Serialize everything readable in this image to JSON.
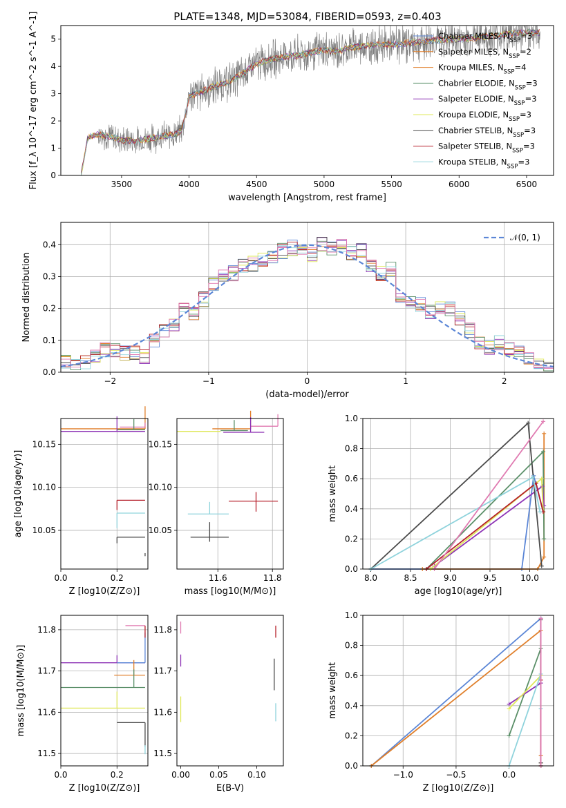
{
  "figure": {
    "title": "PLATE=1348, MJD=53084, FIBERID=0593, z=0.403"
  },
  "colors": {
    "blue": "#5b86d6",
    "orange": "#e07f2a",
    "green": "#5a8f68",
    "purple": "#8d33b5",
    "yellow": "#dfe85a",
    "dark": "#4a4a4a",
    "red": "#b51f2a",
    "cyan": "#8fd3dc",
    "pink": "#e07ab1",
    "gray": "#808080"
  },
  "chart_data": [
    {
      "id": "spectrum",
      "type": "line",
      "xlabel": "wavelength [Angstrom, rest frame]",
      "ylabel": "Flux [f_λ 10^-17 erg cm^-2 s^-1 A^-1]",
      "xlim": [
        3050,
        6700
      ],
      "ylim": [
        0,
        5.5
      ],
      "xticks": [
        3500,
        4000,
        4500,
        5000,
        5500,
        6000,
        6500
      ],
      "yticks": [
        0,
        1,
        2,
        3,
        4,
        5
      ],
      "grid": false,
      "legend_position": "right",
      "series": [
        {
          "name": "Chabrier MILES, N_SSP=3",
          "color": "#5b86d6"
        },
        {
          "name": "Salpeter MILES, N_SSP=2",
          "color": "#e07f2a"
        },
        {
          "name": "Kroupa MILES, N_SSP=4",
          "color": "#e07f2a"
        },
        {
          "name": "Chabrier ELODIE, N_SSP=3",
          "color": "#5a8f68"
        },
        {
          "name": "Salpeter ELODIE, N_SSP=3",
          "color": "#8d33b5"
        },
        {
          "name": "Kroupa ELODIE, N_SSP=3",
          "color": "#dfe85a"
        },
        {
          "name": "Chabrier STELIB, N_SSP=3",
          "color": "#4a4a4a"
        },
        {
          "name": "Salpeter STELIB, N_SSP=3",
          "color": "#b51f2a"
        },
        {
          "name": "Kroupa STELIB, N_SSP=3",
          "color": "#8fd3dc"
        }
      ],
      "data_profile": {
        "x": [
          3200,
          3250,
          3300,
          3400,
          3500,
          3600,
          3700,
          3800,
          3900,
          3950,
          4000,
          4100,
          4200,
          4300,
          4400,
          4500,
          4600,
          4700,
          4800,
          4900,
          5000,
          5100,
          5200,
          5300,
          5400,
          5500,
          5600,
          5700,
          5800,
          5900,
          6000,
          6100,
          6200,
          6300,
          6400,
          6500
        ],
        "y": [
          0.0,
          1.4,
          1.5,
          1.45,
          1.3,
          1.25,
          1.35,
          1.45,
          1.5,
          1.7,
          2.9,
          3.1,
          3.3,
          3.45,
          3.75,
          4.1,
          4.25,
          4.35,
          4.4,
          4.5,
          4.6,
          4.55,
          4.7,
          4.75,
          4.8,
          4.8,
          4.85,
          4.9,
          4.95,
          5.0,
          5.0,
          5.05,
          5.1,
          5.15,
          5.2,
          5.25
        ]
      }
    },
    {
      "id": "residuals",
      "type": "line",
      "xlabel": "(data-model)/error",
      "ylabel": "Normed distribution",
      "xlim": [
        -2.5,
        2.5
      ],
      "ylim": [
        0,
        0.47
      ],
      "xticks": [
        -2,
        -1,
        0,
        1,
        2
      ],
      "yticks": [
        0.0,
        0.1,
        0.2,
        0.3,
        0.4
      ],
      "grid": true,
      "legend_position": "top-right",
      "series": [
        {
          "name": "𝒩(0, 1)",
          "color": "#5b86d6",
          "style": "dashed",
          "mean": 0,
          "sigma": 1
        }
      ],
      "histogram_centers": [
        -2.45,
        -2.35,
        -2.25,
        -2.15,
        -2.05,
        -1.95,
        -1.85,
        -1.75,
        -1.65,
        -1.55,
        -1.45,
        -1.35,
        -1.25,
        -1.15,
        -1.05,
        -0.95,
        -0.85,
        -0.75,
        -0.65,
        -0.55,
        -0.45,
        -0.35,
        -0.25,
        -0.15,
        -0.05,
        0.05,
        0.15,
        0.25,
        0.35,
        0.45,
        0.55,
        0.65,
        0.75,
        0.85,
        0.95,
        1.05,
        1.15,
        1.25,
        1.35,
        1.45,
        1.55,
        1.65,
        1.75,
        1.85,
        1.95,
        2.05,
        2.15,
        2.25,
        2.35,
        2.45
      ],
      "histogram_values": [
        0.03,
        0.025,
        0.03,
        0.055,
        0.07,
        0.065,
        0.06,
        0.06,
        0.05,
        0.1,
        0.13,
        0.15,
        0.2,
        0.18,
        0.23,
        0.28,
        0.3,
        0.31,
        0.33,
        0.34,
        0.35,
        0.36,
        0.38,
        0.39,
        0.38,
        0.37,
        0.4,
        0.39,
        0.4,
        0.37,
        0.38,
        0.33,
        0.31,
        0.32,
        0.23,
        0.22,
        0.21,
        0.19,
        0.2,
        0.2,
        0.17,
        0.13,
        0.09,
        0.08,
        0.09,
        0.07,
        0.06,
        0.04,
        0.03,
        0.02
      ]
    },
    {
      "id": "age-vs-Z",
      "type": "scatter",
      "xlabel": "Z [log10(Z/Z⊙)]",
      "ylabel": "age [log10(age/yr)]",
      "xlim": [
        0.0,
        0.31
      ],
      "ylim": [
        10.005,
        10.18
      ],
      "xticks": [
        0.0,
        0.2
      ],
      "yticks": [
        10.05,
        10.1,
        10.15
      ],
      "grid": true,
      "points": [
        {
          "x": 0.3,
          "y": 10.168,
          "xerr": [
            0.3,
            0.0
          ],
          "yerr": [
            0.15,
            0.0
          ],
          "color": "#e07f2a"
        },
        {
          "x": 0.3,
          "y": 10.17,
          "xerr": [
            0.09,
            0.0
          ],
          "yerr": [
            0.03,
            0.0
          ],
          "color": "#e07ab1"
        },
        {
          "x": 0.26,
          "y": 10.167,
          "xerr": [
            0.06,
            0.04
          ],
          "yerr": [
            0.07,
            0.0
          ],
          "color": "#5a8f68"
        },
        {
          "x": 0.2,
          "y": 10.165,
          "xerr": [
            0.2,
            0.1
          ],
          "yerr": [
            0.1,
            0.0
          ],
          "color": "#8d33b5"
        },
        {
          "x": 0.2,
          "y": 10.085,
          "xerr": [
            0.0,
            0.1
          ],
          "yerr": [
            0.0,
            0.065
          ],
          "color": "#b51f2a"
        },
        {
          "x": 0.2,
          "y": 10.07,
          "xerr": [
            0.0,
            0.1
          ],
          "yerr": [
            0.0,
            0.1
          ],
          "color": "#8fd3dc"
        },
        {
          "x": 0.2,
          "y": 10.042,
          "xerr": [
            0.0,
            0.1
          ],
          "yerr": [
            0.0,
            0.04
          ],
          "color": "#4a4a4a"
        },
        {
          "x": 0.3,
          "y": 10.02,
          "xerr": [
            0.0,
            0.0
          ],
          "yerr": [
            0.02,
            0.0
          ],
          "color": "#4a4a4a"
        }
      ]
    },
    {
      "id": "age-vs-mass",
      "type": "scatter",
      "xlabel": "mass [log10(M/M⊙)]",
      "ylabel": "",
      "xlim": [
        11.45,
        11.84
      ],
      "ylim": [
        10.005,
        10.18
      ],
      "xticks": [
        11.6,
        11.8
      ],
      "yticks": [
        10.05,
        10.1,
        10.15
      ],
      "grid": true,
      "points": [
        {
          "x": 11.72,
          "y": 10.168,
          "xerr": [
            0.14,
            0.0
          ],
          "yerr": [
            0.12,
            0.0
          ],
          "color": "#e07f2a"
        },
        {
          "x": 11.82,
          "y": 10.171,
          "xerr": [
            0.1,
            0.0
          ],
          "yerr": [
            0.08,
            0.0
          ],
          "color": "#e07ab1"
        },
        {
          "x": 11.66,
          "y": 10.166,
          "xerr": [
            0.05,
            0.05
          ],
          "yerr": [
            0.07,
            0.0
          ],
          "color": "#5a8f68"
        },
        {
          "x": 11.72,
          "y": 10.164,
          "xerr": [
            0.1,
            0.05
          ],
          "yerr": [
            0.1,
            0.0
          ],
          "color": "#8d33b5"
        },
        {
          "x": 11.74,
          "y": 10.084,
          "xerr": [
            0.1,
            0.08
          ],
          "yerr": [
            0.06,
            0.07
          ],
          "color": "#b51f2a"
        },
        {
          "x": 11.57,
          "y": 10.069,
          "xerr": [
            0.08,
            0.07
          ],
          "yerr": [
            0.08,
            0.0
          ],
          "color": "#8fd3dc"
        },
        {
          "x": 11.57,
          "y": 10.042,
          "xerr": [
            0.07,
            0.07
          ],
          "yerr": [
            0.1,
            0.03
          ],
          "color": "#4a4a4a"
        },
        {
          "x": 11.61,
          "y": 10.165,
          "xerr": [
            0.16,
            0.0
          ],
          "yerr": [
            0.0,
            0.0
          ],
          "color": "#dfe85a"
        }
      ]
    },
    {
      "id": "weight-vs-age",
      "type": "line",
      "xlabel": "age [log10(age/yr)]",
      "ylabel": "mass weight",
      "xlim": [
        7.9,
        10.3
      ],
      "ylim": [
        0.0,
        1.0
      ],
      "xticks": [
        8.0,
        8.5,
        9.0,
        9.5,
        10.0
      ],
      "yticks": [
        0.0,
        0.2,
        0.4,
        0.6,
        0.8,
        1.0
      ],
      "grid": true,
      "series": [
        {
          "color": "#5b86d6",
          "x": [
            8.0,
            9.9,
            10.05,
            10.17
          ],
          "y": [
            0.0,
            0.0,
            0.62,
            0.38
          ]
        },
        {
          "color": "#e07f2a",
          "x": [
            8.65,
            10.1,
            10.18,
            10.18
          ],
          "y": [
            0.0,
            0.0,
            0.08,
            0.9
          ]
        },
        {
          "color": "#5a8f68",
          "x": [
            8.7,
            10.17,
            10.18
          ],
          "y": [
            0.0,
            0.78,
            0.2
          ]
        },
        {
          "color": "#8d33b5",
          "x": [
            8.8,
            10.16,
            10.18
          ],
          "y": [
            0.02,
            0.55,
            0.42
          ]
        },
        {
          "color": "#dfe85a",
          "x": [
            8.75,
            10.15,
            10.17
          ],
          "y": [
            0.0,
            0.6,
            0.38
          ]
        },
        {
          "color": "#4a4a4a",
          "x": [
            8.0,
            9.98,
            10.15
          ],
          "y": [
            0.0,
            0.97,
            0.02
          ]
        },
        {
          "color": "#b51f2a",
          "x": [
            8.7,
            10.08,
            10.17
          ],
          "y": [
            0.0,
            0.57,
            0.38
          ]
        },
        {
          "color": "#8fd3dc",
          "x": [
            8.0,
            10.04,
            10.13
          ],
          "y": [
            0.0,
            0.61,
            0.38
          ]
        },
        {
          "color": "#e07ab1",
          "x": [
            8.8,
            10.17
          ],
          "y": [
            0.0,
            0.98
          ]
        }
      ]
    },
    {
      "id": "mass-vs-Z",
      "type": "scatter",
      "xlabel": "Z [log10(Z/Z⊙)]",
      "ylabel": "mass [log10(M/M⊙)]",
      "xlim": [
        0.0,
        0.31
      ],
      "ylim": [
        11.47,
        11.835
      ],
      "xticks": [
        0.0,
        0.2
      ],
      "yticks": [
        11.5,
        11.6,
        11.7,
        11.8
      ],
      "grid": true,
      "points": [
        {
          "x": 0.3,
          "y": 11.81,
          "xerr": [
            0.07,
            0.0
          ],
          "yerr": [
            0.0,
            0.0
          ],
          "color": "#e07ab1"
        },
        {
          "x": 0.2,
          "y": 11.72,
          "xerr": [
            0.2,
            0.1
          ],
          "yerr": [
            0.05,
            0.0
          ],
          "color": "#8d33b5"
        },
        {
          "x": 0.3,
          "y": 11.72,
          "xerr": [
            0.1,
            0.0
          ],
          "yerr": [
            0.2,
            0.0
          ],
          "color": "#5b86d6"
        },
        {
          "x": 0.26,
          "y": 11.69,
          "xerr": [
            0.07,
            0.04
          ],
          "yerr": [
            0.1,
            0.0
          ],
          "color": "#e07f2a"
        },
        {
          "x": 0.26,
          "y": 11.66,
          "xerr": [
            0.26,
            0.04
          ],
          "yerr": [
            0.12,
            0.0
          ],
          "color": "#5a8f68"
        },
        {
          "x": 0.2,
          "y": 11.61,
          "xerr": [
            0.2,
            0.1
          ],
          "yerr": [
            0.11,
            0.0
          ],
          "color": "#dfe85a"
        },
        {
          "x": 0.3,
          "y": 11.575,
          "xerr": [
            0.1,
            0.0
          ],
          "yerr": [
            0.0,
            0.16
          ],
          "color": "#4a4a4a"
        },
        {
          "x": 0.3,
          "y": 11.52,
          "xerr": [
            0.0,
            0.0
          ],
          "yerr": [
            0.0,
            0.06
          ],
          "color": "#8fd3dc"
        },
        {
          "x": 0.3,
          "y": 11.81,
          "xerr": [
            0.0,
            0.0
          ],
          "yerr": [
            0.0,
            0.08
          ],
          "color": "#b51f2a"
        }
      ]
    },
    {
      "id": "mass-vs-EBV",
      "type": "scatter",
      "xlabel": "E(B-V)",
      "ylabel": "",
      "xlim": [
        -0.005,
        0.135
      ],
      "ylim": [
        11.47,
        11.835
      ],
      "xticks": [
        0.0,
        0.05,
        0.1
      ],
      "yticks": [
        11.5,
        11.6,
        11.7,
        11.8
      ],
      "grid": false,
      "points": [
        {
          "x": 0.0,
          "y": 11.82,
          "xerr": [
            0.0,
            0.0
          ],
          "yerr": [
            0.0,
            0.08
          ],
          "color": "#e07ab1"
        },
        {
          "x": 0.0,
          "y": 11.74,
          "xerr": [
            0.0,
            0.0
          ],
          "yerr": [
            0.0,
            0.08
          ],
          "color": "#8d33b5"
        },
        {
          "x": 0.0,
          "y": 11.62,
          "xerr": [
            0.0,
            0.0
          ],
          "yerr": [
            0.05,
            0.12
          ],
          "color": "#dfe85a"
        },
        {
          "x": 0.125,
          "y": 11.81,
          "xerr": [
            0.0,
            0.0
          ],
          "yerr": [
            0.0,
            0.08
          ],
          "color": "#b51f2a"
        },
        {
          "x": 0.123,
          "y": 11.73,
          "xerr": [
            0.0,
            0.0
          ],
          "yerr": [
            0.0,
            0.21
          ],
          "color": "#4a4a4a"
        },
        {
          "x": 0.125,
          "y": 11.6,
          "xerr": [
            0.0,
            0.0
          ],
          "yerr": [
            0.06,
            0.06
          ],
          "color": "#8fd3dc"
        }
      ]
    },
    {
      "id": "weight-vs-Z",
      "type": "line",
      "xlabel": "Z [log10(Z/Z⊙)]",
      "ylabel": "mass weight",
      "xlim": [
        -1.38,
        0.42
      ],
      "ylim": [
        0.0,
        1.0
      ],
      "xticks": [
        -1.0,
        -0.5,
        0.0
      ],
      "yticks": [
        0.0,
        0.2,
        0.4,
        0.6,
        0.8,
        1.0
      ],
      "grid": true,
      "series": [
        {
          "color": "#5b86d6",
          "x": [
            -1.3,
            0.3,
            0.3
          ],
          "y": [
            0.0,
            0.98,
            0.02
          ]
        },
        {
          "color": "#e07f2a",
          "x": [
            -1.3,
            0.3,
            0.3
          ],
          "y": [
            0.0,
            0.9,
            0.07
          ]
        },
        {
          "color": "#5a8f68",
          "x": [
            0.0,
            0.3,
            0.3
          ],
          "y": [
            0.2,
            0.78,
            0.02
          ]
        },
        {
          "color": "#8d33b5",
          "x": [
            0.0,
            0.3,
            0.3
          ],
          "y": [
            0.41,
            0.55,
            0.02
          ]
        },
        {
          "color": "#dfe85a",
          "x": [
            0.0,
            0.3,
            0.3
          ],
          "y": [
            0.38,
            0.6,
            0.02
          ]
        },
        {
          "color": "#4a4a4a",
          "x": [
            0.3,
            0.3,
            0.3
          ],
          "y": [
            0.02,
            0.97,
            0.0
          ]
        },
        {
          "color": "#b51f2a",
          "x": [
            0.3,
            0.3
          ],
          "y": [
            0.0,
            0.57
          ]
        },
        {
          "color": "#8fd3dc",
          "x": [
            0.0,
            0.3,
            0.3
          ],
          "y": [
            0.0,
            0.61,
            0.38
          ]
        },
        {
          "color": "#e07ab1",
          "x": [
            0.3,
            0.3
          ],
          "y": [
            0.0,
            0.98
          ]
        }
      ]
    }
  ]
}
